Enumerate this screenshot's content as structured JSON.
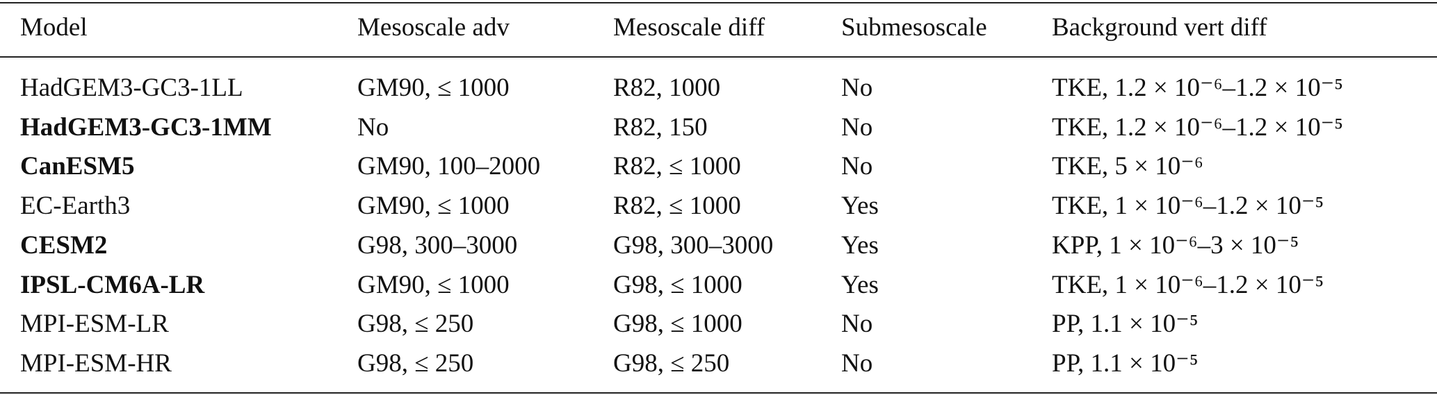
{
  "table": {
    "header": [
      "Model",
      "Mesoscale adv",
      "Mesoscale diff",
      "Submesoscale",
      "Background vert diff"
    ],
    "rows": [
      [
        "HadGEM3-GC3-1LL",
        "GM90, ≤ 1000",
        "R82, 1000",
        "No",
        "TKE, 1.2 × 10⁻⁶–1.2 × 10⁻⁵"
      ],
      [
        "HadGEM3-GC3-1MM",
        "No",
        "R82, 150",
        "No",
        "TKE, 1.2 × 10⁻⁶–1.2 × 10⁻⁵"
      ],
      [
        "CanESM5",
        "GM90, 100–2000",
        "R82, ≤ 1000",
        "No",
        "TKE, 5 × 10⁻⁶"
      ],
      [
        "EC-Earth3",
        "GM90, ≤ 1000",
        "R82, ≤ 1000",
        "Yes",
        "TKE, 1 × 10⁻⁶–1.2 × 10⁻⁵"
      ],
      [
        "CESM2",
        "G98, 300–3000",
        "G98, 300–3000",
        "Yes",
        "KPP, 1 × 10⁻⁶–3 × 10⁻⁵"
      ],
      [
        "IPSL-CM6A-LR",
        "GM90, ≤ 1000",
        "G98, ≤ 1000",
        "Yes",
        "TKE, 1 × 10⁻⁶–1.2 × 10⁻⁵"
      ],
      [
        "MPI-ESM-LR",
        "G98, ≤ 250",
        "G98, ≤ 1000",
        "No",
        "PP, 1.1 × 10⁻⁵"
      ],
      [
        "MPI-ESM-HR",
        "G98, ≤ 250",
        "G98, ≤ 250",
        "No",
        "PP, 1.1 × 10⁻⁵"
      ]
    ]
  }
}
